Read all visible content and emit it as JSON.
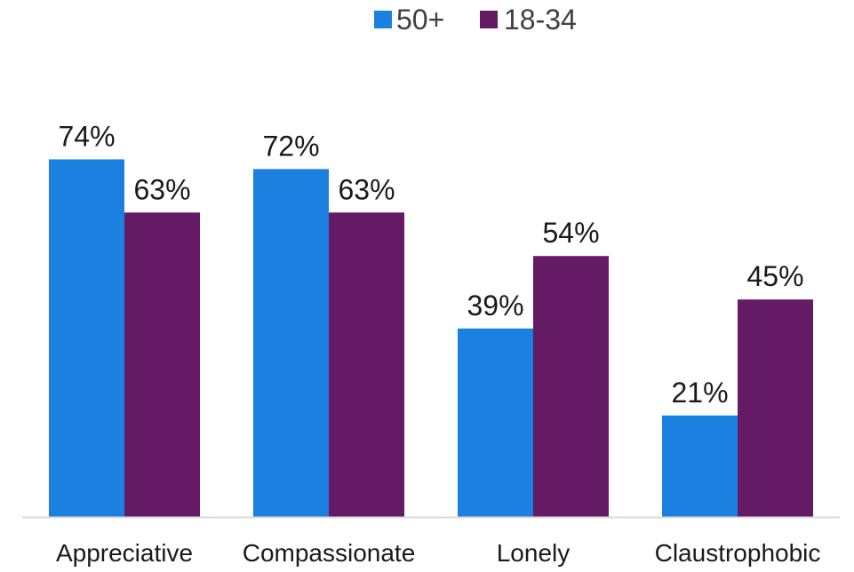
{
  "chart_data": {
    "type": "bar",
    "categories": [
      "Appreciative",
      "Compassionate",
      "Lonely",
      "Claustrophobic"
    ],
    "series": [
      {
        "name": "50+",
        "values": [
          74,
          72,
          39,
          21
        ],
        "color": "#1b80e0"
      },
      {
        "name": "18-34",
        "values": [
          63,
          63,
          54,
          45
        ],
        "color": "#641a64"
      }
    ],
    "value_suffix": "%",
    "title": "",
    "xlabel": "",
    "ylabel": "",
    "ylim": [
      0,
      80
    ],
    "grid": false,
    "legend_position": "top-center",
    "baseline_color": "#d9d9d9"
  }
}
